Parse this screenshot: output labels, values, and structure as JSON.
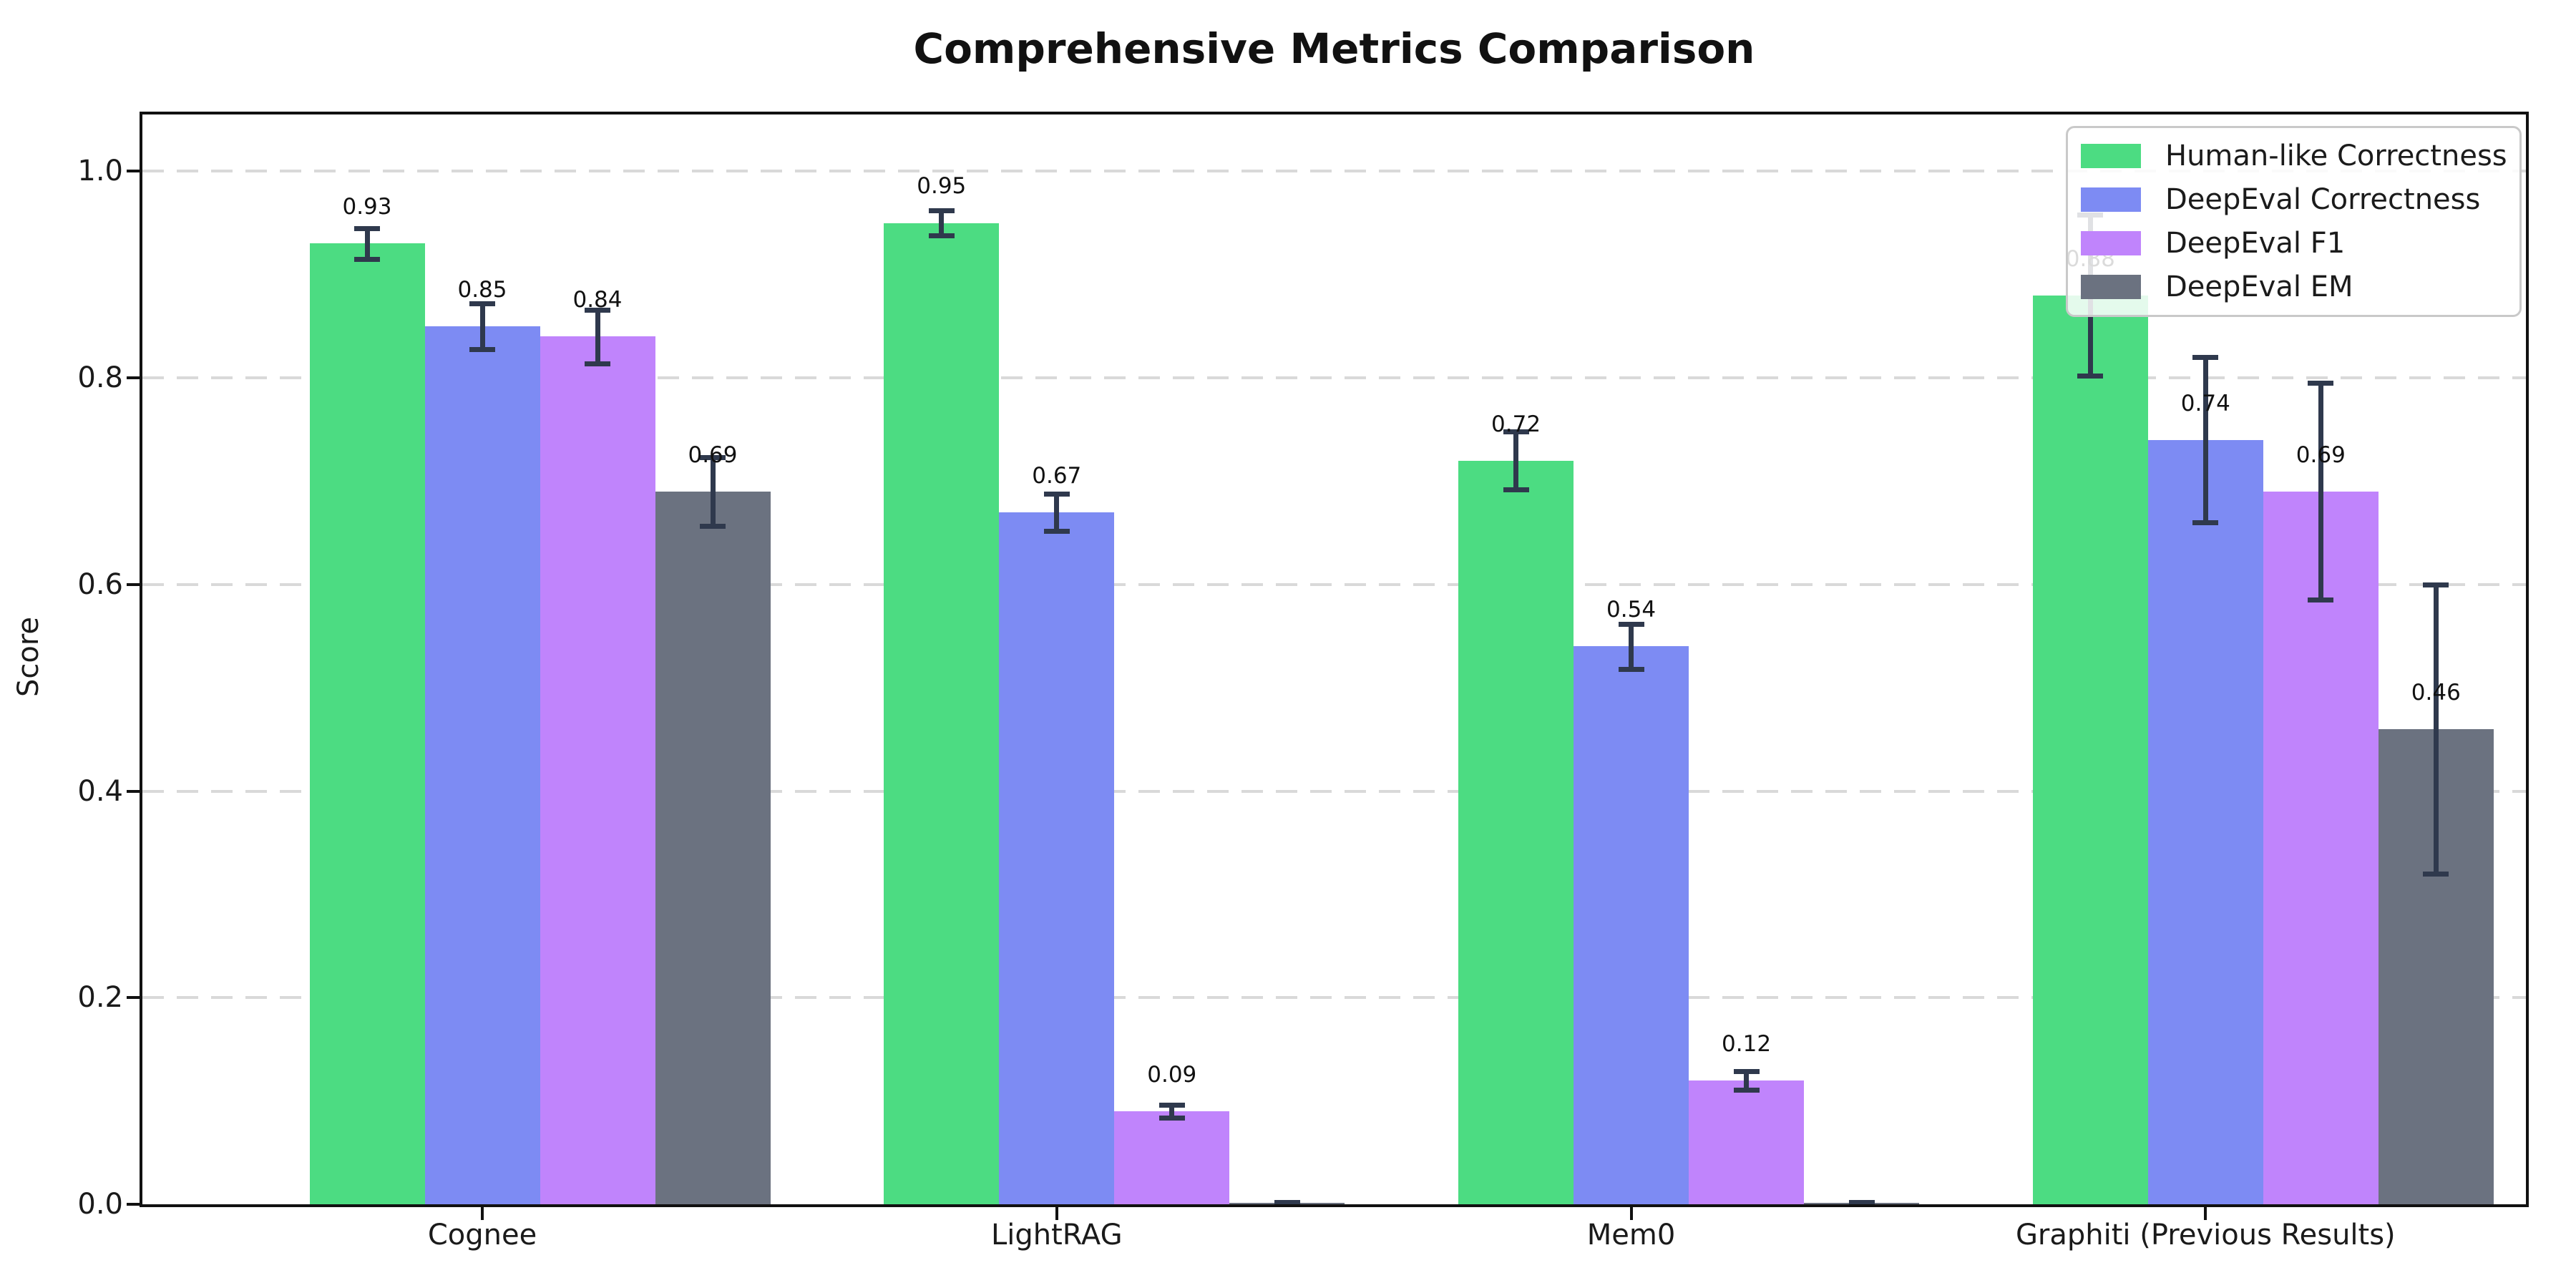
{
  "chart_data": {
    "type": "bar",
    "title": "Comprehensive Metrics Comparison",
    "ylabel": "Score",
    "xlabel": "",
    "categories": [
      "Cognee",
      "LightRAG",
      "Mem0",
      "Graphiti (Previous Results)"
    ],
    "series": [
      {
        "name": "Human-like Correctness",
        "color": "#4cdc82",
        "values": [
          0.93,
          0.95,
          0.72,
          0.88
        ],
        "errors": [
          0.015,
          0.012,
          0.028,
          0.078
        ],
        "labels": [
          "0.93",
          "0.95",
          "0.72",
          "0.88"
        ]
      },
      {
        "name": "DeepEval Correctness",
        "color": "#7d8bf3",
        "values": [
          0.85,
          0.67,
          0.54,
          0.74
        ],
        "errors": [
          0.022,
          0.018,
          0.022,
          0.08
        ],
        "labels": [
          "0.85",
          "0.67",
          "0.54",
          "0.74"
        ]
      },
      {
        "name": "DeepEval F1",
        "color": "#c084fc",
        "values": [
          0.84,
          0.09,
          0.12,
          0.69
        ],
        "errors": [
          0.026,
          0.006,
          0.009,
          0.105
        ],
        "labels": [
          "0.84",
          "0.09",
          "0.12",
          "0.69"
        ]
      },
      {
        "name": "DeepEval EM",
        "color": "#6b7280",
        "values": [
          0.69,
          0.0,
          0.0,
          0.46
        ],
        "errors": [
          0.033,
          0.002,
          0.002,
          0.14
        ],
        "labels": [
          "0.69",
          null,
          null,
          "0.46"
        ]
      }
    ],
    "yticks": [
      0.0,
      0.2,
      0.4,
      0.6,
      0.8,
      1.0
    ],
    "ytick_labels": [
      "0.0",
      "0.2",
      "0.4",
      "0.6",
      "0.8",
      "1.0"
    ],
    "ylim": [
      0,
      1.055
    ],
    "grid": {
      "axis": "y",
      "style": "dashed",
      "color": "#d9d9d9"
    },
    "legend": {
      "position": "upper right"
    },
    "colors": {
      "error_bar": "#2f394d",
      "spine": "#111111",
      "text": "#1a1a1a",
      "background": "#ffffff",
      "legend_border": "#c9c9c9"
    }
  }
}
